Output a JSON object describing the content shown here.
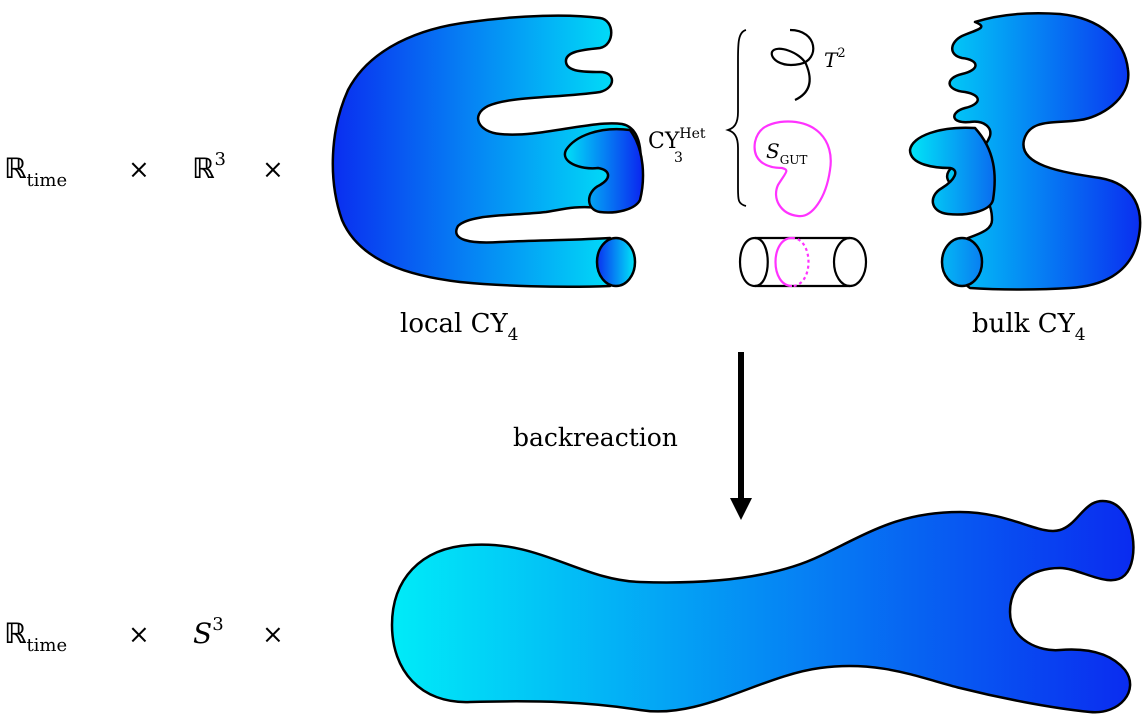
{
  "top_row": {
    "factor1": {
      "symbol": "R",
      "sub": "time"
    },
    "times1": "×",
    "factor2": {
      "symbol": "R",
      "sup": "3"
    },
    "times2": "×"
  },
  "bottom_row": {
    "factor1": {
      "symbol": "R",
      "sub": "time"
    },
    "times1": "×",
    "factor2": {
      "symbol": "S",
      "sup": "3"
    },
    "times2": "×"
  },
  "labels": {
    "local": {
      "text": "local CY",
      "sub": "4"
    },
    "bulk": {
      "text": "bulk CY",
      "sub": "4"
    },
    "het": {
      "text": "CY",
      "sub": "3",
      "sup": "Het"
    },
    "torus": {
      "symbol": "T",
      "sup": "2"
    },
    "sgut": {
      "symbol": "S",
      "sub": "GUT"
    },
    "arrow": "backreaction"
  },
  "colors": {
    "gradient_dark": "#0a2cf0",
    "gradient_light": "#00ecf8",
    "outline": "#000000",
    "magenta": "#ff33ff",
    "background": "#ffffff"
  }
}
